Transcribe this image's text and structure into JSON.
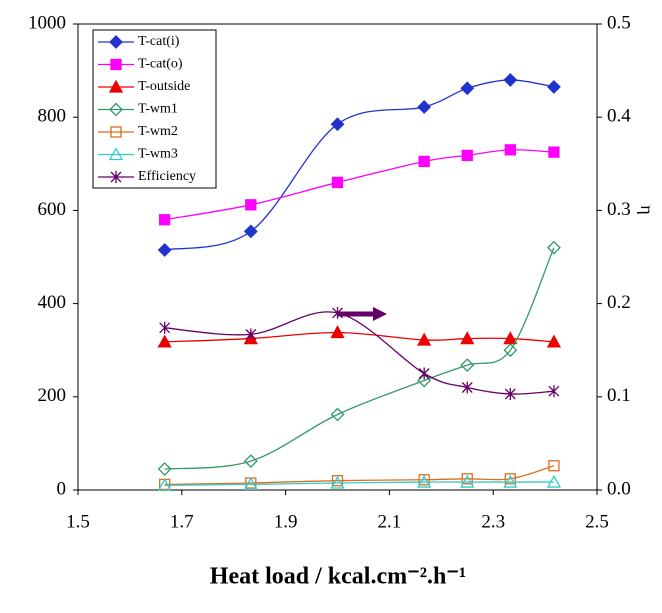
{
  "chart_data": {
    "type": "line",
    "xlabel": "Heat load / kcal.cm⁻².h⁻¹",
    "y2label": "η",
    "x": [
      1.667,
      1.833,
      2.0,
      2.167,
      2.25,
      2.333,
      2.417
    ],
    "xlim": [
      1.5,
      2.5
    ],
    "xticks": [
      1.5,
      1.7,
      1.9,
      2.1,
      2.3,
      2.5
    ],
    "ylim": [
      0,
      1000
    ],
    "yticks": [
      0,
      200,
      400,
      600,
      800,
      1000
    ],
    "y2lim": [
      0,
      0.5
    ],
    "y2ticks": [
      {
        "value": 0,
        "label": "0.0"
      },
      0.1,
      0.2,
      0.3,
      0.4,
      0.5
    ],
    "legend": "upper left",
    "grid": false,
    "series": [
      {
        "name": "T-cat(i)",
        "color": "#2233cc",
        "marker": "diamond",
        "filled": true,
        "values": [
          515,
          555,
          785,
          822,
          862,
          880,
          865
        ]
      },
      {
        "name": "T-cat(o)",
        "color": "#ff00ff",
        "marker": "square",
        "filled": true,
        "values": [
          580,
          612,
          660,
          705,
          718,
          730,
          725
        ]
      },
      {
        "name": "T-outside",
        "color": "#ee0000",
        "marker": "triangle",
        "filled": true,
        "values": [
          318,
          325,
          338,
          322,
          325,
          325,
          318
        ]
      },
      {
        "name": "T-wm1",
        "color": "#339966",
        "marker": "diamond",
        "filled": false,
        "values": [
          45,
          62,
          162,
          235,
          268,
          300,
          520
        ]
      },
      {
        "name": "T-wm2",
        "color": "#e06c1c",
        "marker": "square",
        "filled": false,
        "values": [
          12,
          15,
          20,
          22,
          24,
          24,
          52
        ]
      },
      {
        "name": "T-wm3",
        "color": "#33cccc",
        "marker": "triangle",
        "filled": false,
        "values": [
          10,
          12,
          15,
          17,
          17,
          17,
          17
        ]
      },
      {
        "name": "Efficiency",
        "color": "#660066",
        "marker": "star",
        "filled": false,
        "axis": "y2",
        "values": [
          0.174,
          0.167,
          0.19,
          0.125,
          0.11,
          0.103,
          0.106
        ]
      }
    ]
  }
}
